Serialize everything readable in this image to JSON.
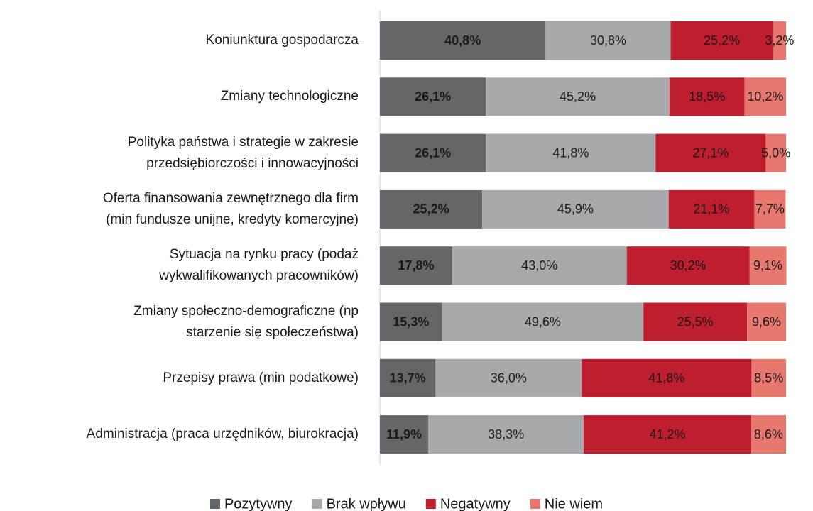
{
  "chart_data": {
    "type": "stacked-bar-horizontal",
    "categories": [
      "Koniunktura gospodarcza",
      "Zmiany technologiczne",
      "Polityka państwa i strategie w zakresie\nprzedsiębiorczości i innowacyjności",
      "Oferta finansowania zewnętrznego dla firm\n(min fundusze unijne, kredyty komercyjne)",
      "Sytuacja na rynku pracy (podaż\nwykwalifikowanych pracowników)",
      "Zmiany społeczno-demograficzne (np\nstarzenie się społeczeństwa)",
      "Przepisy prawa (min podatkowe)",
      "Administracja (praca urzędników, biurokracja)"
    ],
    "xlim": [
      0,
      100
    ],
    "legend": "bottom",
    "series": [
      {
        "name": "Pozytywny",
        "color": "#63676a",
        "values": [
          40.8,
          26.1,
          26.1,
          25.2,
          17.8,
          15.3,
          13.7,
          11.9
        ],
        "value_labels": [
          "40,8%",
          "26,1%",
          "26,1%",
          "25,2%",
          "17,8%",
          "15,3%",
          "13,7%",
          "11,9%"
        ]
      },
      {
        "name": "Brak wpływu",
        "color": "#a7a9ab",
        "values": [
          30.8,
          45.2,
          41.8,
          45.9,
          43.0,
          49.6,
          36.0,
          38.3
        ],
        "value_labels": [
          "30,8%",
          "45,2%",
          "41,8%",
          "45,9%",
          "43,0%",
          "49,6%",
          "36,0%",
          "38,3%"
        ]
      },
      {
        "name": "Negatywny",
        "color": "#be1e2d",
        "values": [
          25.2,
          18.5,
          27.1,
          21.1,
          30.2,
          25.5,
          41.8,
          41.2
        ],
        "value_labels": [
          "25,2%",
          "18,5%",
          "27,1%",
          "21,1%",
          "30,2%",
          "25,5%",
          "41,8%",
          "41,2%"
        ]
      },
      {
        "name": "Nie wiem",
        "color": "#e8786e",
        "values": [
          3.2,
          10.2,
          5.0,
          7.7,
          9.1,
          9.6,
          8.5,
          8.6
        ],
        "value_labels": [
          "3,2%",
          "10,2%",
          "5,0%",
          "7,7%",
          "9,1%",
          "9,6%",
          "8,5%",
          "8,6%"
        ]
      }
    ]
  }
}
